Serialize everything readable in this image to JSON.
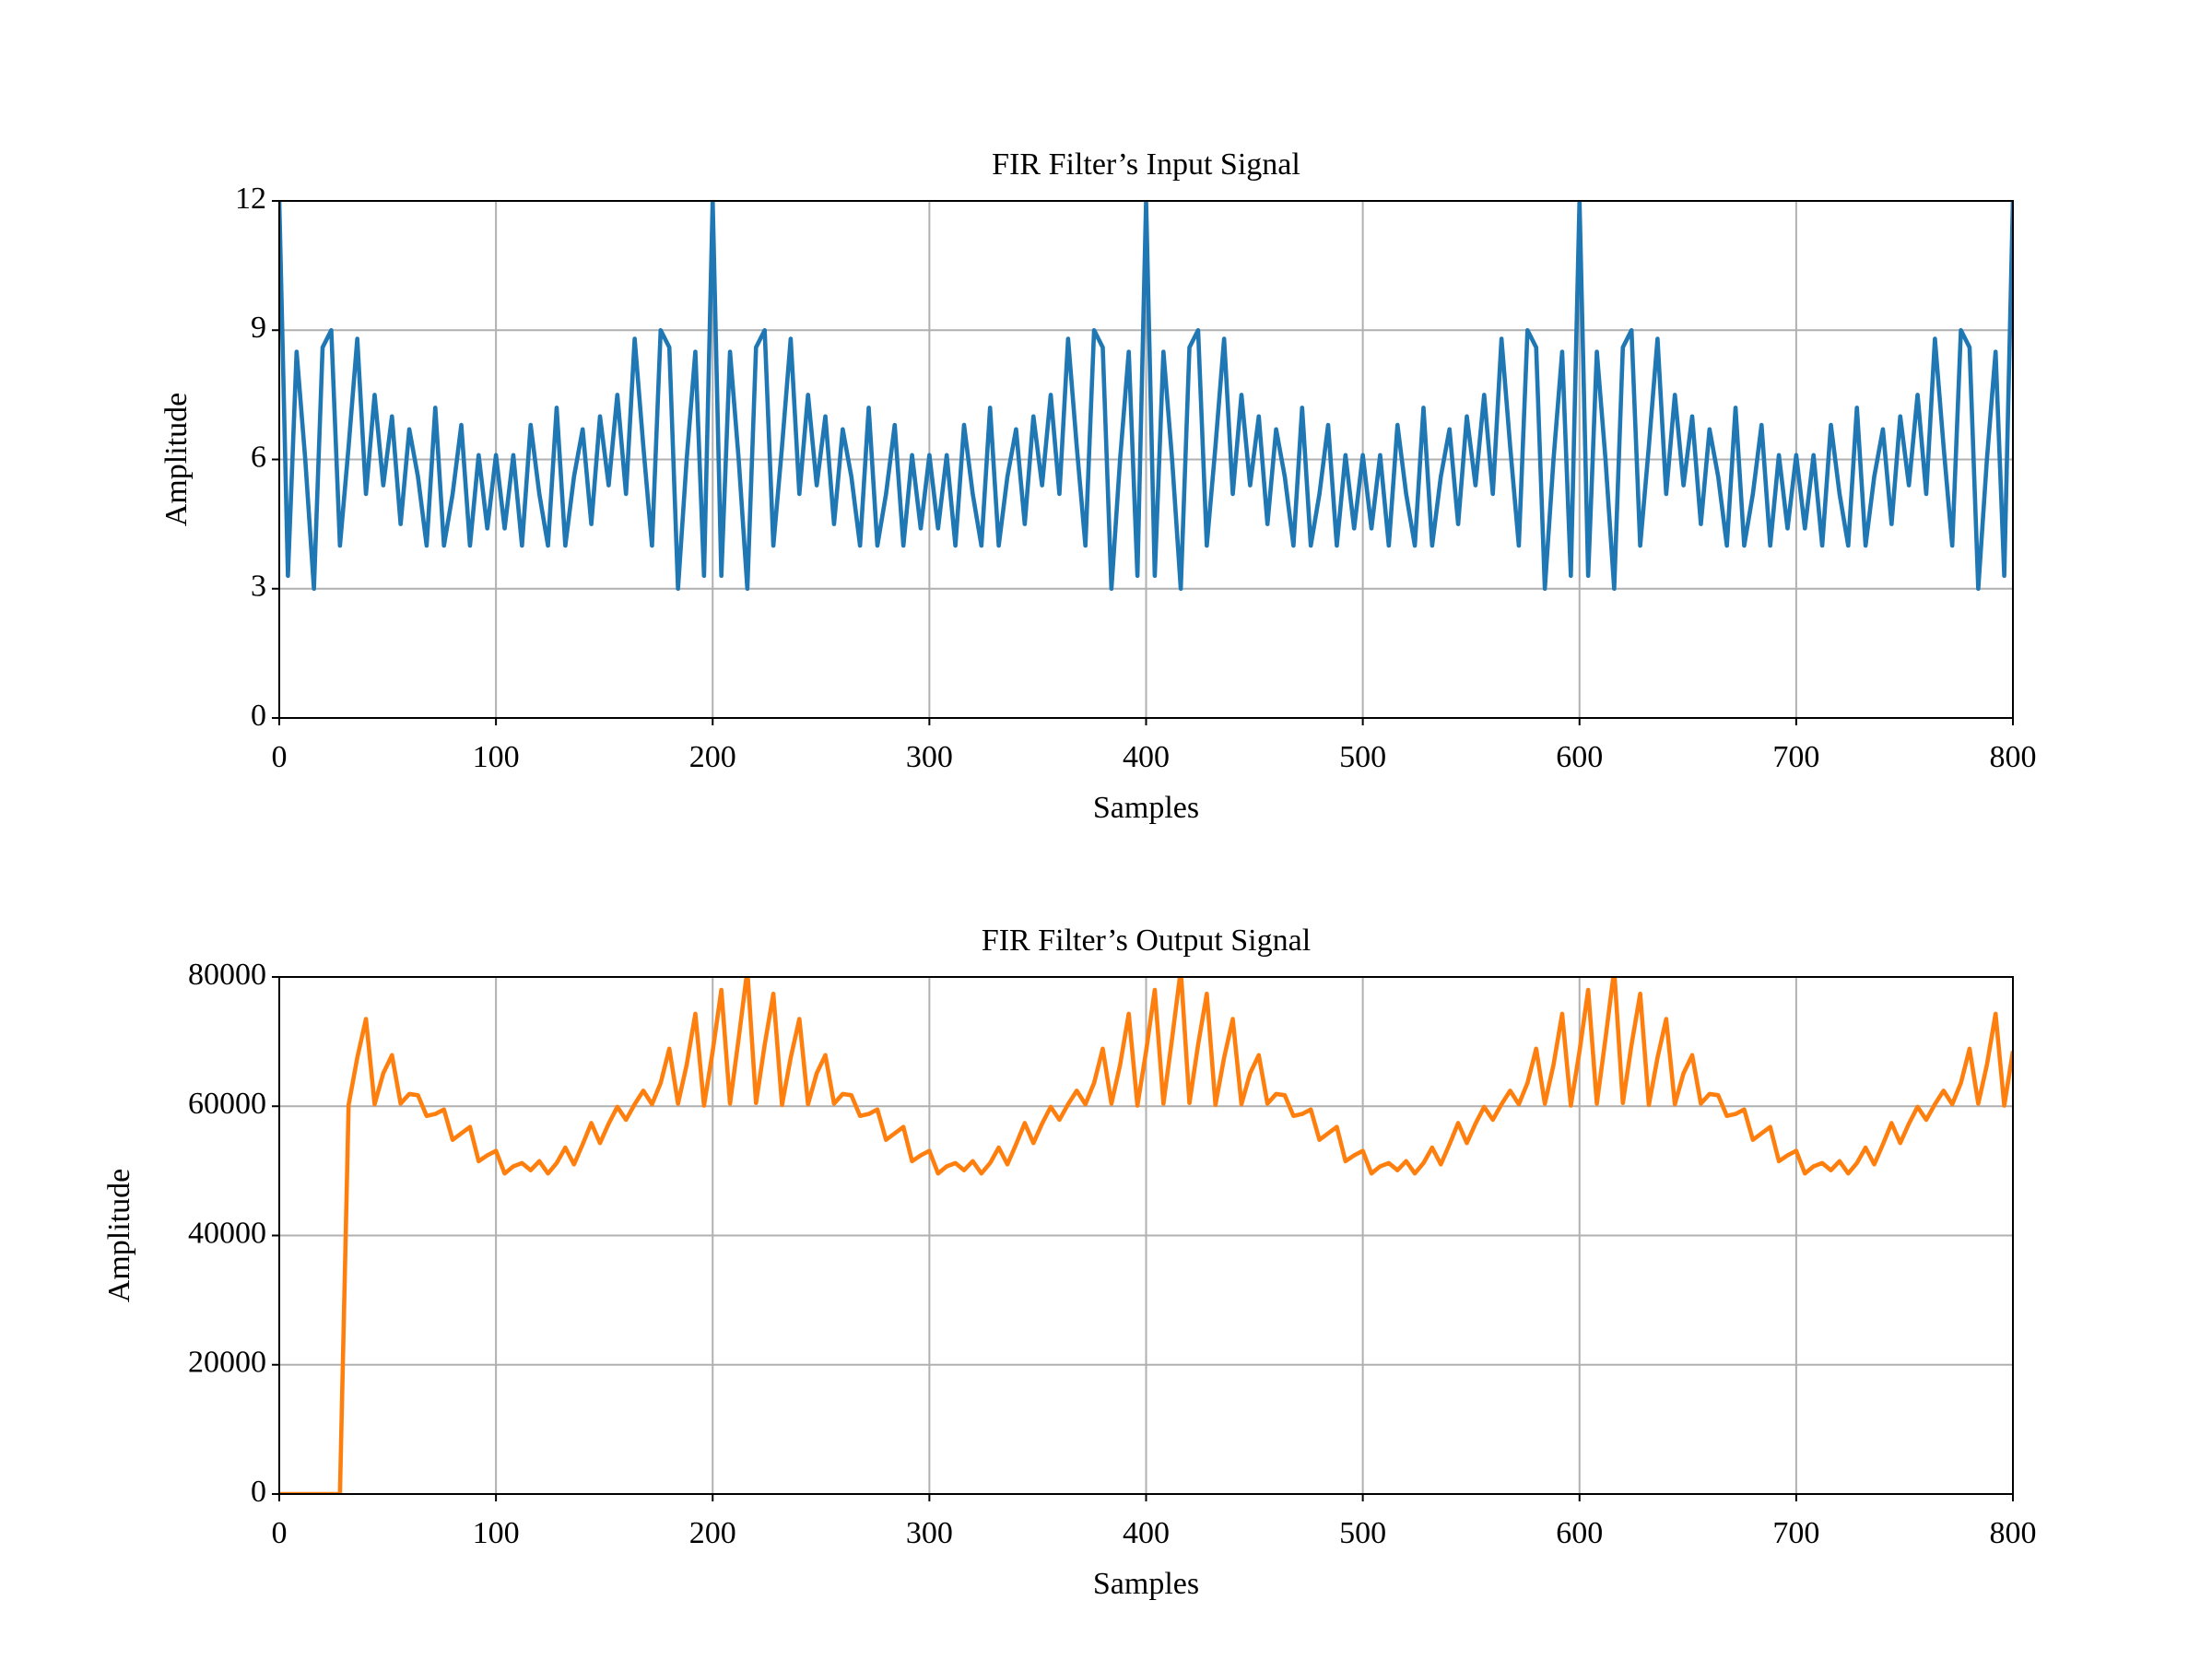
{
  "chart_data": [
    {
      "type": "line",
      "title": "FIR Filter’s Input Signal",
      "x_label": "Samples",
      "y_label": "Amplitude",
      "color": "#1f77b4",
      "xlim": [
        0,
        800
      ],
      "xticks": [
        0,
        100,
        200,
        300,
        400,
        500,
        600,
        700,
        800
      ],
      "ylim": [
        0,
        12
      ],
      "yticks": [
        0,
        3,
        6,
        9,
        12
      ],
      "grid": true,
      "x": [
        0,
        4,
        8,
        12,
        16,
        20,
        24,
        28,
        32,
        36,
        40,
        44,
        48,
        52,
        56,
        60,
        64,
        68,
        72,
        76,
        80,
        84,
        88,
        92,
        96,
        100,
        104,
        108,
        112,
        116,
        120,
        124,
        128,
        132,
        136,
        140,
        144,
        148,
        152,
        156,
        160,
        164,
        168,
        172,
        176,
        180,
        184,
        188,
        192,
        196,
        200,
        204,
        208,
        212,
        216,
        220,
        224,
        228,
        232,
        236,
        240,
        244,
        248,
        252,
        256,
        260,
        264,
        268,
        272,
        276,
        280,
        284,
        288,
        292,
        296,
        300,
        304,
        308,
        312,
        316,
        320,
        324,
        328,
        332,
        336,
        340,
        344,
        348,
        352,
        356,
        360,
        364,
        368,
        372,
        376,
        380,
        384,
        388,
        392,
        396,
        400,
        404,
        408,
        412,
        416,
        420,
        424,
        428,
        432,
        436,
        440,
        444,
        448,
        452,
        456,
        460,
        464,
        468,
        472,
        476,
        480,
        484,
        488,
        492,
        496,
        500,
        504,
        508,
        512,
        516,
        520,
        524,
        528,
        532,
        536,
        540,
        544,
        548,
        552,
        556,
        560,
        564,
        568,
        572,
        576,
        580,
        584,
        588,
        592,
        596,
        600,
        604,
        608,
        612,
        616,
        620,
        624,
        628,
        632,
        636,
        640,
        644,
        648,
        652,
        656,
        660,
        664,
        668,
        672,
        676,
        680,
        684,
        688,
        692,
        696,
        700,
        704,
        708,
        712,
        716,
        720,
        724,
        728,
        732,
        736,
        740,
        744,
        748,
        752,
        756,
        760,
        764,
        768,
        772,
        776,
        780,
        784,
        788,
        792,
        796,
        800
      ],
      "values": [
        12,
        3.3,
        8.5,
        6,
        3,
        8.6,
        9,
        4,
        6.3,
        8.8,
        5.2,
        7.5,
        5.4,
        7,
        4.5,
        6.7,
        5.6,
        4,
        7.2,
        4,
        5.2,
        6.8,
        4,
        6.1,
        4.4,
        6.1,
        4.4,
        6.1,
        4,
        6.8,
        5.2,
        4,
        7.2,
        4,
        5.6,
        6.7,
        4.5,
        7,
        5.4,
        7.5,
        5.2,
        8.8,
        6.3,
        4,
        9,
        8.6,
        3,
        6,
        8.5,
        3.3,
        12,
        3.3,
        8.5,
        6,
        3,
        8.6,
        9,
        4,
        6.3,
        8.8,
        5.2,
        7.5,
        5.4,
        7,
        4.5,
        6.7,
        5.6,
        4,
        7.2,
        4,
        5.2,
        6.8,
        4,
        6.1,
        4.4,
        6.1,
        4.4,
        6.1,
        4,
        6.8,
        5.2,
        4,
        7.2,
        4,
        5.6,
        6.7,
        4.5,
        7,
        5.4,
        7.5,
        5.2,
        8.8,
        6.3,
        4,
        9,
        8.6,
        3,
        6,
        8.5,
        3.3,
        12,
        3.3,
        8.5,
        6,
        3,
        8.6,
        9,
        4,
        6.3,
        8.8,
        5.2,
        7.5,
        5.4,
        7,
        4.5,
        6.7,
        5.6,
        4,
        7.2,
        4,
        5.2,
        6.8,
        4,
        6.1,
        4.4,
        6.1,
        4.4,
        6.1,
        4,
        6.8,
        5.2,
        4,
        7.2,
        4,
        5.6,
        6.7,
        4.5,
        7,
        5.4,
        7.5,
        5.2,
        8.8,
        6.3,
        4,
        9,
        8.6,
        3,
        6,
        8.5,
        3.3,
        12,
        3.3,
        8.5,
        6,
        3,
        8.6,
        9,
        4,
        6.3,
        8.8,
        5.2,
        7.5,
        5.4,
        7,
        4.5,
        6.7,
        5.6,
        4,
        7.2,
        4,
        5.2,
        6.8,
        4,
        6.1,
        4.4,
        6.1,
        4.4,
        6.1,
        4,
        6.8,
        5.2,
        4,
        7.2,
        4,
        5.6,
        6.7,
        4.5,
        7,
        5.4,
        7.5,
        5.2,
        8.8,
        6.3,
        4,
        9,
        8.6,
        3,
        6,
        8.5,
        3.3,
        12
      ]
    },
    {
      "type": "line",
      "title": "FIR Filter’s Output Signal",
      "x_label": "Samples",
      "y_label": "Amplitude",
      "color": "#ff7f0e",
      "xlim": [
        0,
        800
      ],
      "xticks": [
        0,
        100,
        200,
        300,
        400,
        500,
        600,
        700,
        800
      ],
      "ylim": [
        0,
        80000
      ],
      "yticks": [
        0,
        20000,
        40000,
        60000,
        80000
      ],
      "grid": true,
      "x": [
        0,
        4,
        8,
        12,
        16,
        20,
        24,
        28,
        32,
        36,
        40,
        44,
        48,
        52,
        56,
        60,
        64,
        68,
        72,
        76,
        80,
        84,
        88,
        92,
        96,
        100,
        104,
        108,
        112,
        116,
        120,
        124,
        128,
        132,
        136,
        140,
        144,
        148,
        152,
        156,
        160,
        164,
        168,
        172,
        176,
        180,
        184,
        188,
        192,
        196,
        200,
        204,
        208,
        212,
        216,
        220,
        224,
        228,
        232,
        236,
        240,
        244,
        248,
        252,
        256,
        260,
        264,
        268,
        272,
        276,
        280,
        284,
        288,
        292,
        296,
        300,
        304,
        308,
        312,
        316,
        320,
        324,
        328,
        332,
        336,
        340,
        344,
        348,
        352,
        356,
        360,
        364,
        368,
        372,
        376,
        380,
        384,
        388,
        392,
        396,
        400,
        404,
        408,
        412,
        416,
        420,
        424,
        428,
        432,
        436,
        440,
        444,
        448,
        452,
        456,
        460,
        464,
        468,
        472,
        476,
        480,
        484,
        488,
        492,
        496,
        500,
        504,
        508,
        512,
        516,
        520,
        524,
        528,
        532,
        536,
        540,
        544,
        548,
        552,
        556,
        560,
        564,
        568,
        572,
        576,
        580,
        584,
        588,
        592,
        596,
        600,
        604,
        608,
        612,
        616,
        620,
        624,
        628,
        632,
        636,
        640,
        644,
        648,
        652,
        656,
        660,
        664,
        668,
        672,
        676,
        680,
        684,
        688,
        692,
        696,
        700,
        704,
        708,
        712,
        716,
        720,
        724,
        728,
        732,
        736,
        740,
        744,
        748,
        752,
        756,
        760,
        764,
        768,
        772,
        776,
        780,
        784,
        788,
        792,
        796,
        800
      ],
      "values": [
        0,
        0,
        0,
        0,
        0,
        0,
        0,
        0,
        60200,
        67500,
        73500,
        60300,
        65100,
        67900,
        60400,
        61900,
        61700,
        58500,
        58800,
        59500,
        54800,
        55800,
        56800,
        51500,
        52400,
        53100,
        49600,
        50700,
        51200,
        50100,
        51500,
        49600,
        51200,
        53600,
        51000,
        54100,
        57400,
        54300,
        57300,
        59900,
        57900,
        60300,
        62400,
        60300,
        63600,
        68900,
        60400,
        66400,
        74300,
        60100,
        68500,
        78000,
        60400,
        70500,
        81100,
        60500,
        69500,
        77400,
        60200,
        67500,
        73500,
        60300,
        65100,
        67900,
        60400,
        61900,
        61700,
        58500,
        58800,
        59500,
        54800,
        55800,
        56800,
        51500,
        52400,
        53100,
        49600,
        50700,
        51200,
        50100,
        51500,
        49600,
        51200,
        53600,
        51000,
        54100,
        57400,
        54300,
        57300,
        59900,
        57900,
        60300,
        62400,
        60300,
        63600,
        68900,
        60400,
        66400,
        74300,
        60100,
        68500,
        78000,
        60400,
        70500,
        81100,
        60500,
        69500,
        77400,
        60200,
        67500,
        73500,
        60300,
        65100,
        67900,
        60400,
        61900,
        61700,
        58500,
        58800,
        59500,
        54800,
        55800,
        56800,
        51500,
        52400,
        53100,
        49600,
        50700,
        51200,
        50100,
        51500,
        49600,
        51200,
        53600,
        51000,
        54100,
        57400,
        54300,
        57300,
        59900,
        57900,
        60300,
        62400,
        60300,
        63600,
        68900,
        60400,
        66400,
        74300,
        60100,
        68500,
        78000,
        60400,
        70500,
        81100,
        60500,
        69500,
        77400,
        60200,
        67500,
        73500,
        60300,
        65100,
        67900,
        60400,
        61900,
        61700,
        58500,
        58800,
        59500,
        54800,
        55800,
        56800,
        51500,
        52400,
        53100,
        49600,
        50700,
        51200,
        50100,
        51500,
        49600,
        51200,
        53600,
        51000,
        54100,
        57400,
        54300,
        57300,
        59900,
        57900,
        60300,
        62400,
        60300,
        63600,
        68900,
        60400,
        66400,
        74300,
        60100,
        68500
      ]
    }
  ]
}
